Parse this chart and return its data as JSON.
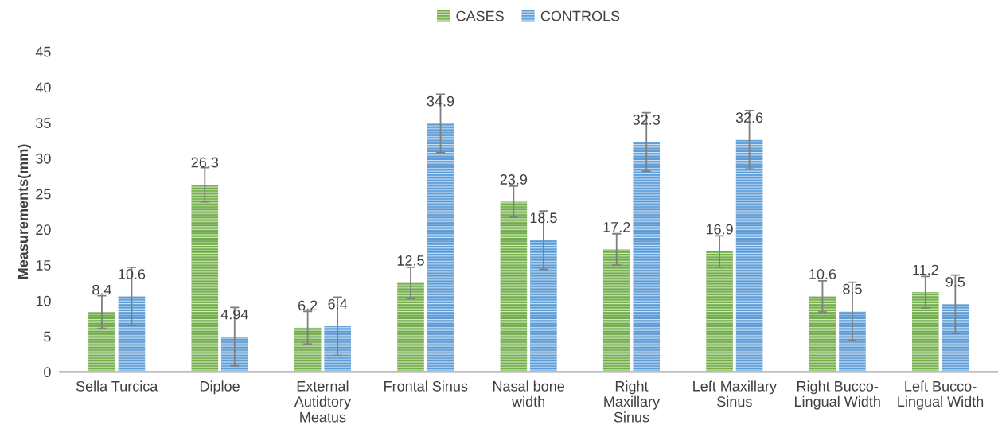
{
  "chart_data": {
    "type": "bar",
    "ylabel": "Measurements(mm)",
    "categories": [
      "Sella Turcica",
      "Diploe",
      "External Autidtory Meatus",
      "Frontal Sinus",
      "Nasal bone width",
      "Right Maxillary Sinus",
      "Left Maxillary Sinus",
      "Right Bucco-Lingual Width",
      "Left Bucco-Lingual Width"
    ],
    "series": [
      {
        "name": "CASES",
        "color": "#70ad47",
        "values": [
          8.4,
          26.3,
          6.2,
          12.5,
          23.9,
          17.2,
          16.9,
          10.6,
          11.2
        ],
        "errors": [
          2.3,
          2.4,
          2.3,
          2.2,
          2.2,
          2.2,
          2.2,
          2.2,
          2.2
        ]
      },
      {
        "name": "CONTROLS",
        "color": "#5b9bd5",
        "values": [
          10.6,
          4.94,
          6.4,
          34.9,
          18.5,
          32.3,
          32.6,
          8.5,
          9.5
        ],
        "errors": [
          4.1,
          4.1,
          4.1,
          4.1,
          4.1,
          4.1,
          4.1,
          4.1,
          4.1
        ]
      }
    ],
    "ylim": [
      0,
      45
    ],
    "yticks": [
      0,
      5,
      10,
      15,
      20,
      25,
      30,
      35,
      40,
      45
    ],
    "data_labels": true,
    "grid": false,
    "legend": "top"
  }
}
